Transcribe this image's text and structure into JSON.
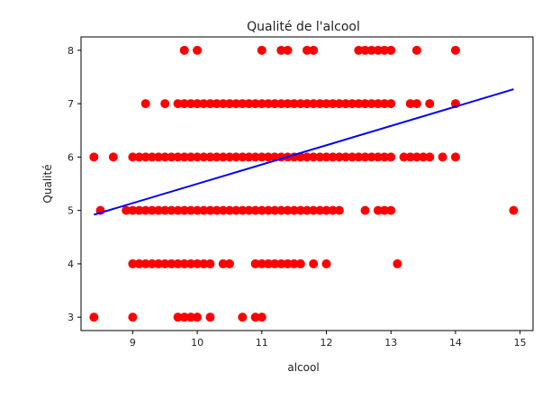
{
  "chart_data": {
    "type": "scatter",
    "title": "Qualité de l'alcool",
    "xlabel": "alcool",
    "ylabel": "Qualité",
    "xlim": [
      8.2,
      15.2
    ],
    "ylim": [
      2.75,
      8.25
    ],
    "xticks": [
      9,
      10,
      11,
      12,
      13,
      14,
      15
    ],
    "yticks": [
      3,
      4,
      5,
      6,
      7,
      8
    ],
    "grid": false,
    "point_color": "#ff0000",
    "line_color": "#0000ff",
    "points": {
      "8": [
        9.8,
        10.0,
        11.0,
        11.3,
        11.4,
        11.7,
        11.8,
        12.5,
        12.6,
        12.7,
        12.8,
        12.9,
        13.0,
        13.4,
        14.0
      ],
      "7": [
        9.2,
        9.5,
        9.7,
        9.8,
        9.9,
        10.0,
        10.1,
        10.2,
        10.3,
        10.4,
        10.5,
        10.6,
        10.7,
        10.8,
        10.9,
        11.0,
        11.1,
        11.2,
        11.3,
        11.4,
        11.5,
        11.6,
        11.7,
        11.8,
        11.9,
        12.0,
        12.1,
        12.2,
        12.3,
        12.4,
        12.5,
        12.6,
        12.7,
        12.8,
        12.9,
        13.0,
        13.3,
        13.4,
        13.6,
        14.0
      ],
      "6": [
        8.4,
        8.7,
        9.0,
        9.1,
        9.2,
        9.3,
        9.4,
        9.5,
        9.6,
        9.7,
        9.8,
        9.9,
        10.0,
        10.1,
        10.2,
        10.3,
        10.4,
        10.5,
        10.6,
        10.7,
        10.8,
        10.9,
        11.0,
        11.1,
        11.2,
        11.3,
        11.4,
        11.5,
        11.6,
        11.7,
        11.8,
        11.9,
        12.0,
        12.1,
        12.2,
        12.3,
        12.4,
        12.5,
        12.6,
        12.7,
        12.8,
        12.9,
        13.0,
        13.2,
        13.3,
        13.4,
        13.5,
        13.6,
        13.8,
        14.0
      ],
      "5": [
        8.5,
        8.9,
        9.0,
        9.1,
        9.2,
        9.3,
        9.4,
        9.5,
        9.6,
        9.7,
        9.8,
        9.9,
        10.0,
        10.1,
        10.2,
        10.3,
        10.4,
        10.5,
        10.6,
        10.7,
        10.8,
        10.9,
        11.0,
        11.1,
        11.2,
        11.3,
        11.4,
        11.5,
        11.6,
        11.7,
        11.8,
        11.9,
        12.0,
        12.1,
        12.2,
        12.6,
        12.8,
        12.9,
        13.0,
        14.9
      ],
      "4": [
        9.0,
        9.1,
        9.2,
        9.3,
        9.4,
        9.5,
        9.6,
        9.7,
        9.8,
        9.9,
        10.0,
        10.1,
        10.2,
        10.4,
        10.5,
        10.9,
        11.0,
        11.1,
        11.2,
        11.3,
        11.4,
        11.5,
        11.6,
        11.8,
        12.0,
        13.1
      ],
      "3": [
        8.4,
        9.0,
        9.7,
        9.8,
        9.9,
        10.0,
        10.2,
        10.7,
        10.9,
        11.0
      ]
    },
    "regression_line": {
      "x": [
        8.4,
        14.9
      ],
      "y": [
        4.92,
        7.27
      ]
    }
  }
}
